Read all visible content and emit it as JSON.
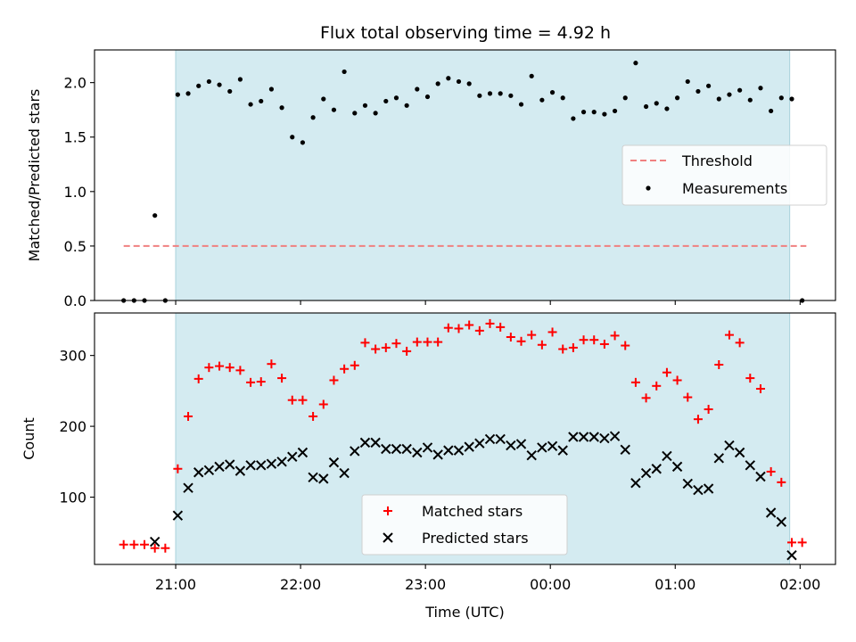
{
  "title": "Flux total observing time = 4.92 h",
  "colors": {
    "shade": "#d4ebf1",
    "shade_edge": "#a9d2dc",
    "threshold": "#f08080",
    "measurement": "#000000",
    "matched": "#ff0000",
    "predicted": "#000000"
  },
  "chart_data": [
    {
      "type": "scatter",
      "ylabel": "Matched/Predicted stars",
      "ylim": [
        0,
        2.3
      ],
      "yticks": [
        "0.0",
        "0.5",
        "1.0",
        "1.5",
        "2.0"
      ],
      "xlim": [
        "20:21",
        "02:17"
      ],
      "shaded_span": [
        "21:00",
        "01:55"
      ],
      "threshold": {
        "name": "Threshold",
        "value": 0.5,
        "x": [
          "20:35",
          "02:03"
        ]
      },
      "legend": {
        "placement": "center-right",
        "entries": [
          "Threshold",
          "Measurements"
        ]
      },
      "series": [
        {
          "name": "Measurements",
          "marker": "dot",
          "points": [
            [
              "20:35",
              0.0
            ],
            [
              "20:40",
              0.0
            ],
            [
              "20:45",
              0.0
            ],
            [
              "20:50",
              0.78
            ],
            [
              "20:55",
              0.0
            ],
            [
              "21:01",
              1.89
            ],
            [
              "21:06",
              1.9
            ],
            [
              "21:11",
              1.97
            ],
            [
              "21:16",
              2.01
            ],
            [
              "21:21",
              1.98
            ],
            [
              "21:26",
              1.92
            ],
            [
              "21:31",
              2.03
            ],
            [
              "21:36",
              1.8
            ],
            [
              "21:41",
              1.83
            ],
            [
              "21:46",
              1.94
            ],
            [
              "21:51",
              1.77
            ],
            [
              "21:56",
              1.5
            ],
            [
              "22:01",
              1.45
            ],
            [
              "22:06",
              1.68
            ],
            [
              "22:11",
              1.85
            ],
            [
              "22:16",
              1.75
            ],
            [
              "22:21",
              2.1
            ],
            [
              "22:26",
              1.72
            ],
            [
              "22:31",
              1.79
            ],
            [
              "22:36",
              1.72
            ],
            [
              "22:41",
              1.83
            ],
            [
              "22:46",
              1.86
            ],
            [
              "22:51",
              1.79
            ],
            [
              "22:56",
              1.94
            ],
            [
              "23:01",
              1.87
            ],
            [
              "23:06",
              1.99
            ],
            [
              "23:11",
              2.04
            ],
            [
              "23:16",
              2.01
            ],
            [
              "23:21",
              1.99
            ],
            [
              "23:26",
              1.88
            ],
            [
              "23:31",
              1.9
            ],
            [
              "23:36",
              1.9
            ],
            [
              "23:41",
              1.88
            ],
            [
              "23:46",
              1.8
            ],
            [
              "23:51",
              2.06
            ],
            [
              "23:56",
              1.84
            ],
            [
              "00:01",
              1.91
            ],
            [
              "00:06",
              1.86
            ],
            [
              "00:11",
              1.67
            ],
            [
              "00:16",
              1.73
            ],
            [
              "00:21",
              1.73
            ],
            [
              "00:26",
              1.71
            ],
            [
              "00:31",
              1.74
            ],
            [
              "00:36",
              1.86
            ],
            [
              "00:41",
              2.18
            ],
            [
              "00:46",
              1.78
            ],
            [
              "00:51",
              1.81
            ],
            [
              "00:56",
              1.76
            ],
            [
              "01:01",
              1.86
            ],
            [
              "01:06",
              2.01
            ],
            [
              "01:11",
              1.92
            ],
            [
              "01:16",
              1.97
            ],
            [
              "01:21",
              1.85
            ],
            [
              "01:26",
              1.89
            ],
            [
              "01:31",
              1.93
            ],
            [
              "01:36",
              1.84
            ],
            [
              "01:41",
              1.95
            ],
            [
              "01:46",
              1.74
            ],
            [
              "01:51",
              1.86
            ],
            [
              "01:56",
              1.85
            ],
            [
              "02:01",
              0.0
            ]
          ]
        }
      ]
    },
    {
      "type": "scatter",
      "xlabel": "Time (UTC)",
      "ylabel": "Count",
      "ylim": [
        5,
        360
      ],
      "yticks": [
        "100",
        "200",
        "300"
      ],
      "xlim": [
        "20:21",
        "02:17"
      ],
      "xticks": [
        "21:00",
        "22:00",
        "23:00",
        "00:00",
        "01:00",
        "02:00"
      ],
      "shaded_span": [
        "21:00",
        "01:55"
      ],
      "legend": {
        "placement": "lower-center",
        "entries": [
          "Matched stars",
          "Predicted stars"
        ]
      },
      "series": [
        {
          "name": "Matched stars",
          "marker": "plus",
          "points": [
            [
              "20:35",
              33
            ],
            [
              "20:40",
              33
            ],
            [
              "20:45",
              33
            ],
            [
              "20:50",
              28
            ],
            [
              "20:55",
              28
            ],
            [
              "21:01",
              140
            ],
            [
              "21:06",
              214
            ],
            [
              "21:11",
              267
            ],
            [
              "21:16",
              283
            ],
            [
              "21:21",
              285
            ],
            [
              "21:26",
              283
            ],
            [
              "21:31",
              279
            ],
            [
              "21:36",
              262
            ],
            [
              "21:41",
              263
            ],
            [
              "21:46",
              288
            ],
            [
              "21:51",
              268
            ],
            [
              "21:56",
              237
            ],
            [
              "22:01",
              237
            ],
            [
              "22:06",
              214
            ],
            [
              "22:11",
              231
            ],
            [
              "22:16",
              265
            ],
            [
              "22:21",
              281
            ],
            [
              "22:26",
              286
            ],
            [
              "22:31",
              318
            ],
            [
              "22:36",
              309
            ],
            [
              "22:41",
              311
            ],
            [
              "22:46",
              317
            ],
            [
              "22:51",
              306
            ],
            [
              "22:56",
              319
            ],
            [
              "23:01",
              319
            ],
            [
              "23:06",
              319
            ],
            [
              "23:11",
              339
            ],
            [
              "23:16",
              338
            ],
            [
              "23:21",
              343
            ],
            [
              "23:26",
              335
            ],
            [
              "23:31",
              345
            ],
            [
              "23:36",
              340
            ],
            [
              "23:41",
              326
            ],
            [
              "23:46",
              320
            ],
            [
              "23:51",
              329
            ],
            [
              "23:56",
              315
            ],
            [
              "00:01",
              333
            ],
            [
              "00:06",
              309
            ],
            [
              "00:11",
              311
            ],
            [
              "00:16",
              322
            ],
            [
              "00:21",
              322
            ],
            [
              "00:26",
              316
            ],
            [
              "00:31",
              328
            ],
            [
              "00:36",
              314
            ],
            [
              "00:41",
              262
            ],
            [
              "00:46",
              240
            ],
            [
              "00:51",
              257
            ],
            [
              "00:56",
              276
            ],
            [
              "01:01",
              265
            ],
            [
              "01:06",
              241
            ],
            [
              "01:11",
              210
            ],
            [
              "01:16",
              224
            ],
            [
              "01:21",
              287
            ],
            [
              "01:26",
              329
            ],
            [
              "01:31",
              318
            ],
            [
              "01:36",
              268
            ],
            [
              "01:41",
              253
            ],
            [
              "01:46",
              136
            ],
            [
              "01:51",
              121
            ],
            [
              "01:56",
              36
            ],
            [
              "02:01",
              36
            ]
          ]
        },
        {
          "name": "Predicted stars",
          "marker": "x",
          "points": [
            [
              "20:50",
              37
            ],
            [
              "21:01",
              74
            ],
            [
              "21:06",
              113
            ],
            [
              "21:11",
              135
            ],
            [
              "21:16",
              138
            ],
            [
              "21:21",
              143
            ],
            [
              "21:26",
              146
            ],
            [
              "21:31",
              137
            ],
            [
              "21:36",
              145
            ],
            [
              "21:41",
              145
            ],
            [
              "21:46",
              147
            ],
            [
              "21:51",
              150
            ],
            [
              "21:56",
              157
            ],
            [
              "22:01",
              163
            ],
            [
              "22:06",
              128
            ],
            [
              "22:11",
              126
            ],
            [
              "22:16",
              149
            ],
            [
              "22:21",
              134
            ],
            [
              "22:26",
              165
            ],
            [
              "22:31",
              177
            ],
            [
              "22:36",
              177
            ],
            [
              "22:41",
              168
            ],
            [
              "22:46",
              168
            ],
            [
              "22:51",
              168
            ],
            [
              "22:56",
              163
            ],
            [
              "23:01",
              170
            ],
            [
              "23:06",
              160
            ],
            [
              "23:11",
              166
            ],
            [
              "23:16",
              166
            ],
            [
              "23:21",
              171
            ],
            [
              "23:26",
              176
            ],
            [
              "23:31",
              182
            ],
            [
              "23:36",
              182
            ],
            [
              "23:41",
              173
            ],
            [
              "23:46",
              175
            ],
            [
              "23:51",
              159
            ],
            [
              "23:56",
              170
            ],
            [
              "00:01",
              172
            ],
            [
              "00:06",
              166
            ],
            [
              "00:11",
              185
            ],
            [
              "00:16",
              185
            ],
            [
              "00:21",
              185
            ],
            [
              "00:26",
              183
            ],
            [
              "00:31",
              186
            ],
            [
              "00:36",
              167
            ],
            [
              "00:41",
              120
            ],
            [
              "00:46",
              134
            ],
            [
              "00:51",
              140
            ],
            [
              "00:56",
              158
            ],
            [
              "01:01",
              143
            ],
            [
              "01:06",
              119
            ],
            [
              "01:11",
              110
            ],
            [
              "01:16",
              112
            ],
            [
              "01:21",
              155
            ],
            [
              "01:26",
              173
            ],
            [
              "01:31",
              163
            ],
            [
              "01:36",
              145
            ],
            [
              "01:41",
              129
            ],
            [
              "01:46",
              78
            ],
            [
              "01:51",
              65
            ],
            [
              "01:56",
              18
            ]
          ]
        }
      ]
    }
  ]
}
